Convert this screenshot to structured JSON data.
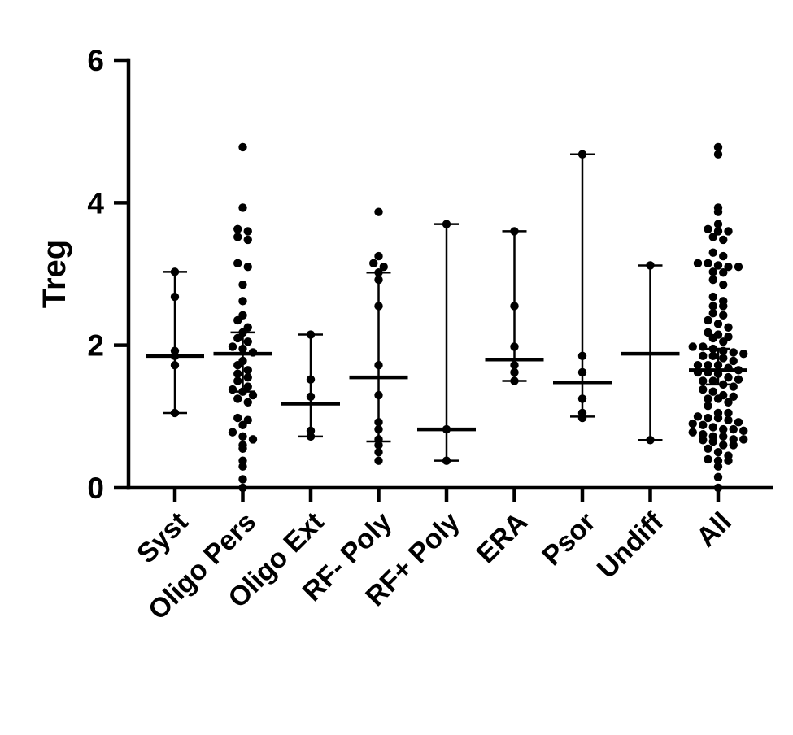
{
  "chart_data": {
    "type": "scatter",
    "ylabel": "Treg",
    "xlabel": "",
    "ylim": [
      0,
      6
    ],
    "yticks": [
      0,
      2,
      4,
      6
    ],
    "grid": false,
    "groups": [
      {
        "name": "Syst",
        "median": 1.85,
        "lower": 1.05,
        "upper": 3.03,
        "points": [
          3.03,
          2.68,
          1.92,
          1.85,
          1.72,
          1.05
        ]
      },
      {
        "name": "Oligo Pers",
        "median": 1.88,
        "lower": 1.35,
        "upper": 2.18,
        "points": [
          4.78,
          3.93,
          3.63,
          3.6,
          3.52,
          3.48,
          3.15,
          3.1,
          2.85,
          2.62,
          2.42,
          2.35,
          2.25,
          2.18,
          2.1,
          2.05,
          1.98,
          1.95,
          1.9,
          1.78,
          1.72,
          1.65,
          1.6,
          1.55,
          1.5,
          1.42,
          1.38,
          1.35,
          1.3,
          1.25,
          1.2,
          0.98,
          0.95,
          0.88,
          0.78,
          0.72,
          0.68,
          0.6,
          0.55,
          0.38,
          0.3,
          0.12,
          0.0
        ]
      },
      {
        "name": "Oligo Ext",
        "median": 1.18,
        "lower": 0.72,
        "upper": 2.15,
        "points": [
          2.15,
          1.52,
          1.28,
          0.8,
          0.72
        ]
      },
      {
        "name": "RF- Poly",
        "median": 1.55,
        "lower": 0.65,
        "upper": 3.02,
        "points": [
          3.87,
          3.25,
          3.15,
          3.1,
          3.02,
          2.92,
          2.55,
          1.72,
          1.3,
          0.92,
          0.82,
          0.68,
          0.6,
          0.5,
          0.38
        ]
      },
      {
        "name": "RF+ Poly",
        "median": 0.82,
        "lower": 0.38,
        "upper": 3.7,
        "points": [
          3.7,
          0.82,
          0.38
        ]
      },
      {
        "name": "ERA",
        "median": 1.8,
        "lower": 1.5,
        "upper": 3.6,
        "points": [
          3.6,
          2.55,
          1.98,
          1.72,
          1.62,
          1.5
        ]
      },
      {
        "name": "Psor",
        "median": 1.48,
        "lower": 1.0,
        "upper": 4.68,
        "points": [
          4.68,
          1.85,
          1.62,
          1.25,
          1.05,
          0.98
        ]
      },
      {
        "name": "Undiff",
        "median": 1.88,
        "lower": 0.67,
        "upper": 3.12,
        "points": [
          3.12,
          0.67
        ]
      },
      {
        "name": "All",
        "median": 1.65,
        "lower": 1.45,
        "upper": 1.95,
        "points": [
          4.78,
          4.68,
          3.93,
          3.87,
          3.7,
          3.63,
          3.6,
          3.6,
          3.52,
          3.48,
          3.3,
          3.25,
          3.15,
          3.15,
          3.12,
          3.1,
          3.1,
          3.03,
          3.02,
          2.92,
          2.85,
          2.68,
          2.62,
          2.55,
          2.55,
          2.45,
          2.42,
          2.35,
          2.3,
          2.25,
          2.18,
          2.15,
          2.12,
          2.1,
          2.05,
          1.98,
          1.98,
          1.95,
          1.92,
          1.9,
          1.88,
          1.85,
          1.85,
          1.82,
          1.78,
          1.72,
          1.72,
          1.72,
          1.68,
          1.65,
          1.62,
          1.62,
          1.6,
          1.55,
          1.52,
          1.5,
          1.5,
          1.45,
          1.42,
          1.38,
          1.35,
          1.3,
          1.28,
          1.25,
          1.25,
          1.2,
          1.15,
          1.05,
          1.05,
          1.0,
          0.98,
          0.98,
          0.95,
          0.92,
          0.9,
          0.88,
          0.85,
          0.82,
          0.82,
          0.8,
          0.78,
          0.75,
          0.72,
          0.72,
          0.68,
          0.68,
          0.67,
          0.65,
          0.6,
          0.6,
          0.55,
          0.5,
          0.45,
          0.4,
          0.38,
          0.38,
          0.3,
          0.15,
          0.0
        ]
      }
    ]
  }
}
